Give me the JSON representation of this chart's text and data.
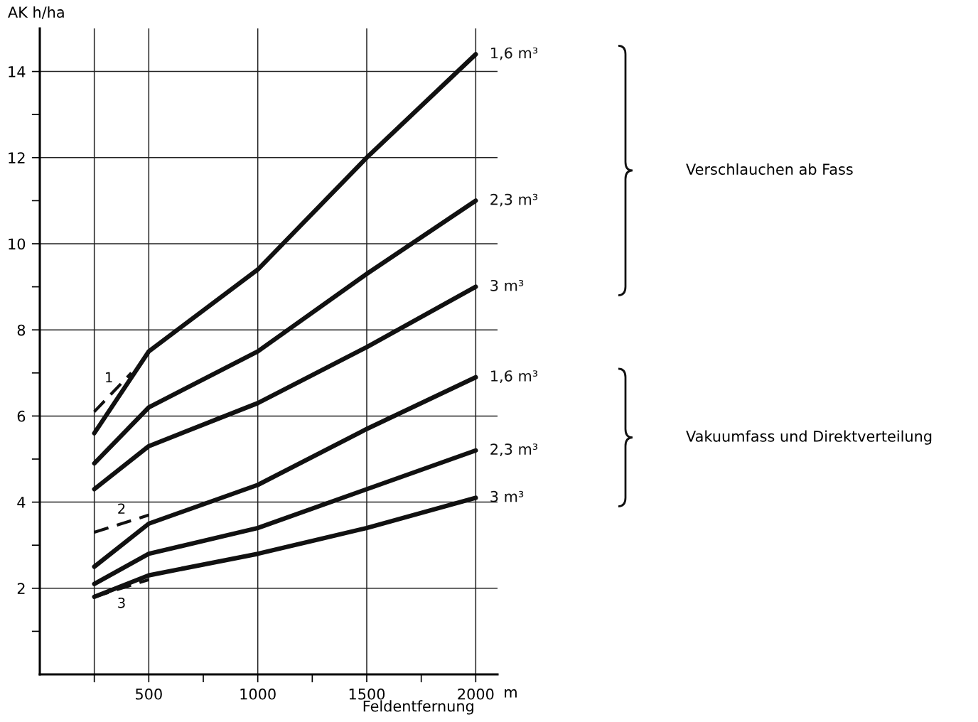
{
  "chart_data": {
    "type": "line",
    "ylabel": "AK h/ha",
    "xlabel": "Feldentfernung",
    "xlim": [
      0,
      2100
    ],
    "ylim": [
      0,
      15
    ],
    "xticks": [
      {
        "value": 250,
        "label": null
      },
      500,
      {
        "value": 750,
        "label": null
      },
      1000,
      {
        "value": 1250,
        "label": null
      },
      1500,
      {
        "value": 1750,
        "label": null
      },
      2000
    ],
    "yticks": [
      {
        "value": 1,
        "label": null
      },
      2,
      {
        "value": 3,
        "label": null
      },
      4,
      {
        "value": 5,
        "label": null
      },
      6,
      {
        "value": 7,
        "label": null
      },
      8,
      {
        "value": 9,
        "label": null
      },
      10,
      {
        "value": 11,
        "label": null
      },
      12,
      {
        "value": 13,
        "label": null
      },
      14
    ],
    "grid": false,
    "line_style": "solid",
    "marker": "none",
    "ref_lines": [
      {
        "axis": "y",
        "value": 2,
        "label": null
      },
      {
        "axis": "y",
        "value": 4,
        "label": null
      },
      {
        "axis": "y",
        "value": 6,
        "label": null
      },
      {
        "axis": "y",
        "value": 8,
        "label": null
      },
      {
        "axis": "y",
        "value": 10,
        "label": null
      },
      {
        "axis": "y",
        "value": 12,
        "label": null
      },
      {
        "axis": "y",
        "value": 14,
        "label": null
      },
      {
        "axis": "x",
        "value": 250,
        "label": null
      },
      {
        "axis": "x",
        "value": 500,
        "label": null
      },
      {
        "axis": "x",
        "value": 1000,
        "label": null
      },
      {
        "axis": "x",
        "value": 1500,
        "label": null
      },
      {
        "axis": "x",
        "value": 2000,
        "label": null
      }
    ],
    "series": [
      {
        "name": "1,6 m³",
        "color": "#111111",
        "x": [
          250,
          500,
          1000,
          1500,
          2000
        ],
        "values": [
          5.6,
          7.5,
          9.4,
          12.0,
          14.4
        ]
      },
      {
        "name": "2,3 m³",
        "color": "#111111",
        "x": [
          250,
          500,
          1000,
          1500,
          2000
        ],
        "values": [
          4.9,
          6.2,
          7.5,
          9.3,
          11.0
        ]
      },
      {
        "name": "3 m³",
        "color": "#111111",
        "x": [
          250,
          500,
          1000,
          1500,
          2000
        ],
        "values": [
          4.3,
          5.3,
          6.3,
          7.6,
          9.0
        ]
      },
      {
        "name": "1,6 m³",
        "color": "#111111",
        "x": [
          250,
          500,
          1000,
          1500,
          2000
        ],
        "values": [
          2.5,
          3.5,
          4.4,
          5.7,
          6.9
        ]
      },
      {
        "name": "2,3 m³",
        "color": "#111111",
        "x": [
          250,
          500,
          1000,
          1500,
          2000
        ],
        "values": [
          2.1,
          2.8,
          3.4,
          4.3,
          5.2
        ]
      },
      {
        "name": "3 m³",
        "color": "#111111",
        "x": [
          250,
          500,
          1000,
          1500,
          2000
        ],
        "values": [
          1.8,
          2.3,
          2.8,
          3.4,
          4.1
        ]
      },
      {
        "name": "1",
        "color": "#111111",
        "line_style": "dashed",
        "x": [
          250,
          420
        ],
        "values": [
          6.1,
          7.0
        ]
      },
      {
        "name": "2",
        "color": "#111111",
        "line_style": "dashed",
        "x": [
          250,
          500
        ],
        "values": [
          3.3,
          3.7
        ]
      },
      {
        "name": "3",
        "color": "#111111",
        "line_style": "dashed",
        "x": [
          250,
          500
        ],
        "values": [
          1.8,
          2.2
        ]
      }
    ],
    "annotations": [
      "m",
      "Verschlauchen ab Fass",
      "Vakuumfass und Direktverteilung"
    ]
  }
}
